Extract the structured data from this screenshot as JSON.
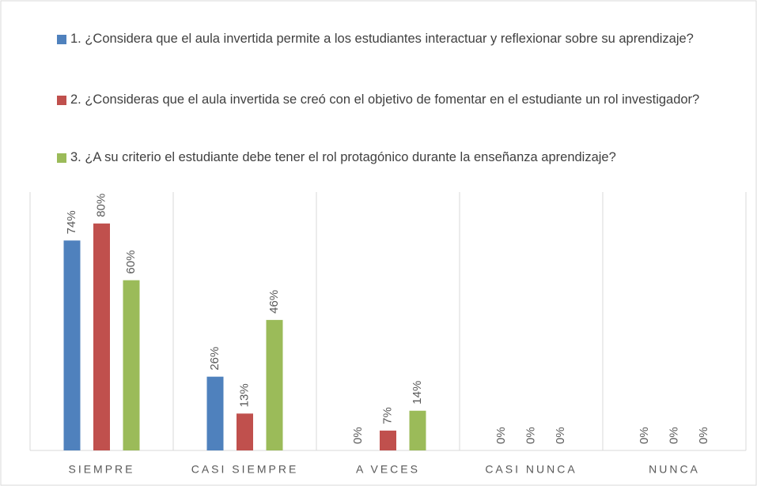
{
  "chart_data": {
    "type": "bar",
    "categories": [
      "SIEMPRE",
      "CASI SIEMPRE",
      "A VECES",
      "CASI NUNCA",
      "NUNCA"
    ],
    "series": [
      {
        "name": "1. ¿Considera que el aula invertida permite a los estudiantes interactuar y reflexionar sobre su aprendizaje?",
        "color": "#4f81bd",
        "values": [
          74,
          26,
          0,
          0,
          0
        ],
        "value_labels": [
          "74%",
          "26%",
          "0%",
          "0%",
          "0%"
        ]
      },
      {
        "name": "2. ¿Consideras que el aula invertida se creó con el objetivo de fomentar en el estudiante un rol investigador?",
        "color": "#c0504d",
        "values": [
          80,
          13,
          7,
          0,
          0
        ],
        "value_labels": [
          "80%",
          "13%",
          "7%",
          "0%",
          "0%"
        ]
      },
      {
        "name": "3. ¿A su criterio el estudiante debe tener el rol protagónico durante la enseñanza aprendizaje?",
        "color": "#9bbb59",
        "values": [
          60,
          46,
          14,
          0,
          0
        ],
        "value_labels": [
          "60%",
          "46%",
          "14%",
          "0%",
          "0%"
        ]
      }
    ],
    "ylim": [
      0,
      100
    ],
    "legend": "top",
    "grid": true
  }
}
